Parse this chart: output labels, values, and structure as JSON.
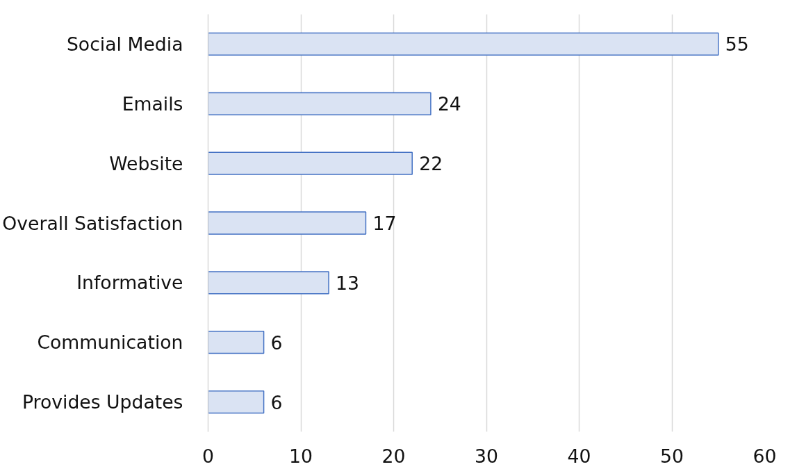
{
  "chart_data": {
    "type": "bar",
    "orientation": "horizontal",
    "categories": [
      "Social Media",
      "Emails",
      "Website",
      "Overall Satisfaction",
      "Informative",
      "Communication",
      "Provides Updates"
    ],
    "values": [
      55,
      24,
      22,
      17,
      13,
      6,
      6
    ],
    "color": "#dae3f3",
    "xlim": [
      0,
      60
    ],
    "xticks": [
      0,
      10,
      20,
      30,
      40,
      50,
      60
    ],
    "grid": "x",
    "data_labels": true
  }
}
